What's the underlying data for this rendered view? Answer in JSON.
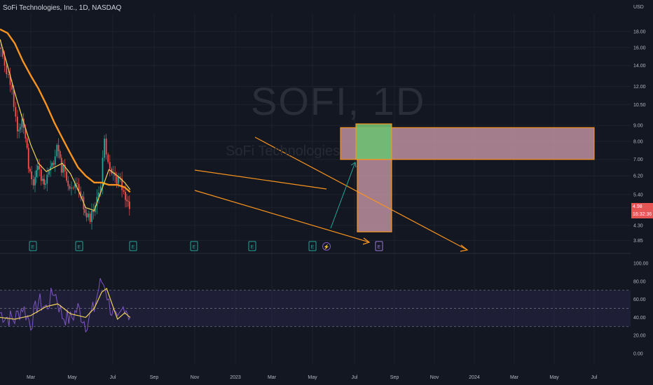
{
  "header": {
    "title": "SoFi Technologies, Inc., 1D, NASDAQ",
    "currency": "USD"
  },
  "watermark": {
    "symbol": "SOFI, 1D",
    "name": "SoFi Technologies"
  },
  "price_badges": [
    "4.98",
    "16:32:36"
  ],
  "colors": {
    "background": "#131722",
    "candle_up": "#26a69a",
    "candle_down": "#ef5350",
    "ma_fast": "#f2d25a",
    "ma_slow": "#f7931e",
    "drawing": "#f7931e",
    "projection_box": "#d4a0b0",
    "target_box": "#6fbf73",
    "arrow": "#26a69a",
    "rsi_line": "#7e57c2",
    "rsi_signal": "#f2d25a",
    "rsi_band": "#2a2448"
  },
  "chart_data": [
    {
      "type": "line",
      "title": "SoFi Technologies, Inc., 1D, NASDAQ",
      "y_scale": "log",
      "xlabel": "",
      "ylabel": "",
      "x_ticks": [
        "Mar",
        "May",
        "Jul",
        "Sep",
        "Nov",
        "2023",
        "Mar",
        "May",
        "Jul",
        "Sep",
        "Nov",
        "2024",
        "Mar",
        "May",
        "Jul"
      ],
      "y_ticks": [
        "18.00",
        "16.00",
        "14.00",
        "12.00",
        "10.50",
        "9.00",
        "8.00",
        "7.00",
        "6.20",
        "5.40",
        "4.90",
        "4.30",
        "3.85"
      ],
      "grid": true,
      "series": [
        {
          "name": "price",
          "x": [
            "2022-01-03",
            "2022-01-17",
            "2022-02-01",
            "2022-02-15",
            "2022-03-01",
            "2022-03-15",
            "2022-04-01",
            "2022-04-15",
            "2022-05-02",
            "2022-05-16",
            "2022-06-01",
            "2022-06-15",
            "2022-07-01",
            "2022-07-15",
            "2022-08-01",
            "2022-08-15",
            "2022-09-01",
            "2022-09-15",
            "2022-10-03",
            "2022-10-17",
            "2022-11-01",
            "2022-11-15",
            "2022-12-01",
            "2022-12-15",
            "2023-01-03",
            "2023-01-17",
            "2023-02-01",
            "2023-02-15",
            "2023-03-01",
            "2023-03-15",
            "2023-04-03",
            "2023-04-17",
            "2023-05-01",
            "2023-05-12",
            "2023-05-22"
          ],
          "values": [
            16.0,
            15.2,
            13.5,
            12.0,
            10.5,
            8.8,
            9.5,
            8.0,
            6.2,
            5.6,
            6.8,
            5.9,
            6.0,
            6.5,
            6.6,
            7.9,
            6.6,
            6.3,
            5.4,
            5.6,
            5.8,
            5.3,
            4.7,
            4.6,
            4.6,
            5.4,
            6.0,
            8.0,
            7.0,
            6.5,
            5.9,
            6.0,
            5.5,
            5.0,
            4.98
          ]
        },
        {
          "name": "MA fast",
          "x": [
            "2022-01-03",
            "2022-02-01",
            "2022-03-01",
            "2022-04-01",
            "2022-05-02",
            "2022-06-01",
            "2022-07-01",
            "2022-08-01",
            "2022-09-01",
            "2022-10-03",
            "2022-11-01",
            "2022-12-01",
            "2023-01-03",
            "2023-02-01",
            "2023-03-01",
            "2023-04-03",
            "2023-05-01",
            "2023-05-22"
          ],
          "values": [
            17.0,
            14.0,
            11.5,
            9.4,
            7.8,
            6.8,
            6.4,
            6.6,
            6.8,
            6.3,
            5.6,
            4.9,
            4.8,
            5.6,
            6.5,
            6.2,
            5.9,
            5.6
          ]
        },
        {
          "name": "MA slow",
          "x": [
            "2022-01-03",
            "2022-02-01",
            "2022-03-01",
            "2022-04-01",
            "2022-05-02",
            "2022-06-01",
            "2022-07-01",
            "2022-08-01",
            "2022-09-01",
            "2022-10-03",
            "2022-11-01",
            "2022-12-01",
            "2023-01-03",
            "2023-02-01",
            "2023-03-01",
            "2023-04-03",
            "2023-05-01",
            "2023-05-22"
          ],
          "values": [
            18.3,
            17.8,
            16.5,
            14.5,
            13.0,
            11.8,
            10.5,
            9.2,
            8.2,
            7.3,
            6.6,
            6.2,
            5.9,
            5.9,
            5.8,
            5.8,
            5.7,
            5.5
          ]
        }
      ]
    },
    {
      "type": "line",
      "title": "",
      "y_ticks": [
        "100.00",
        "80.00",
        "60.00",
        "40.00",
        "20.00",
        "0.00"
      ],
      "ylim": [
        0,
        100
      ],
      "band": [
        30,
        70
      ],
      "series": [
        {
          "name": "RSI",
          "x": [
            "2022-01-03",
            "2022-02-01",
            "2022-03-01",
            "2022-04-01",
            "2022-05-02",
            "2022-06-01",
            "2022-07-01",
            "2022-08-01",
            "2022-09-01",
            "2022-10-03",
            "2022-11-01",
            "2022-12-01",
            "2023-01-03",
            "2023-01-20",
            "2023-02-01",
            "2023-02-15",
            "2023-03-01",
            "2023-04-03",
            "2023-05-01",
            "2023-05-22"
          ],
          "values": [
            45,
            40,
            38,
            52,
            33,
            58,
            50,
            70,
            42,
            38,
            50,
            33,
            50,
            72,
            80,
            75,
            55,
            32,
            55,
            40
          ]
        },
        {
          "name": "RSI MA",
          "x": [
            "2022-01-03",
            "2022-03-01",
            "2022-05-02",
            "2022-07-01",
            "2022-08-15",
            "2022-10-03",
            "2022-12-01",
            "2023-01-03",
            "2023-02-01",
            "2023-02-20",
            "2023-04-03",
            "2023-05-01",
            "2023-05-22"
          ],
          "values": [
            40,
            38,
            42,
            52,
            55,
            44,
            40,
            50,
            68,
            72,
            38,
            45,
            40
          ]
        }
      ]
    }
  ],
  "events": [
    "E",
    "E",
    "E",
    "E",
    "E",
    "E",
    "⚡",
    "E"
  ]
}
